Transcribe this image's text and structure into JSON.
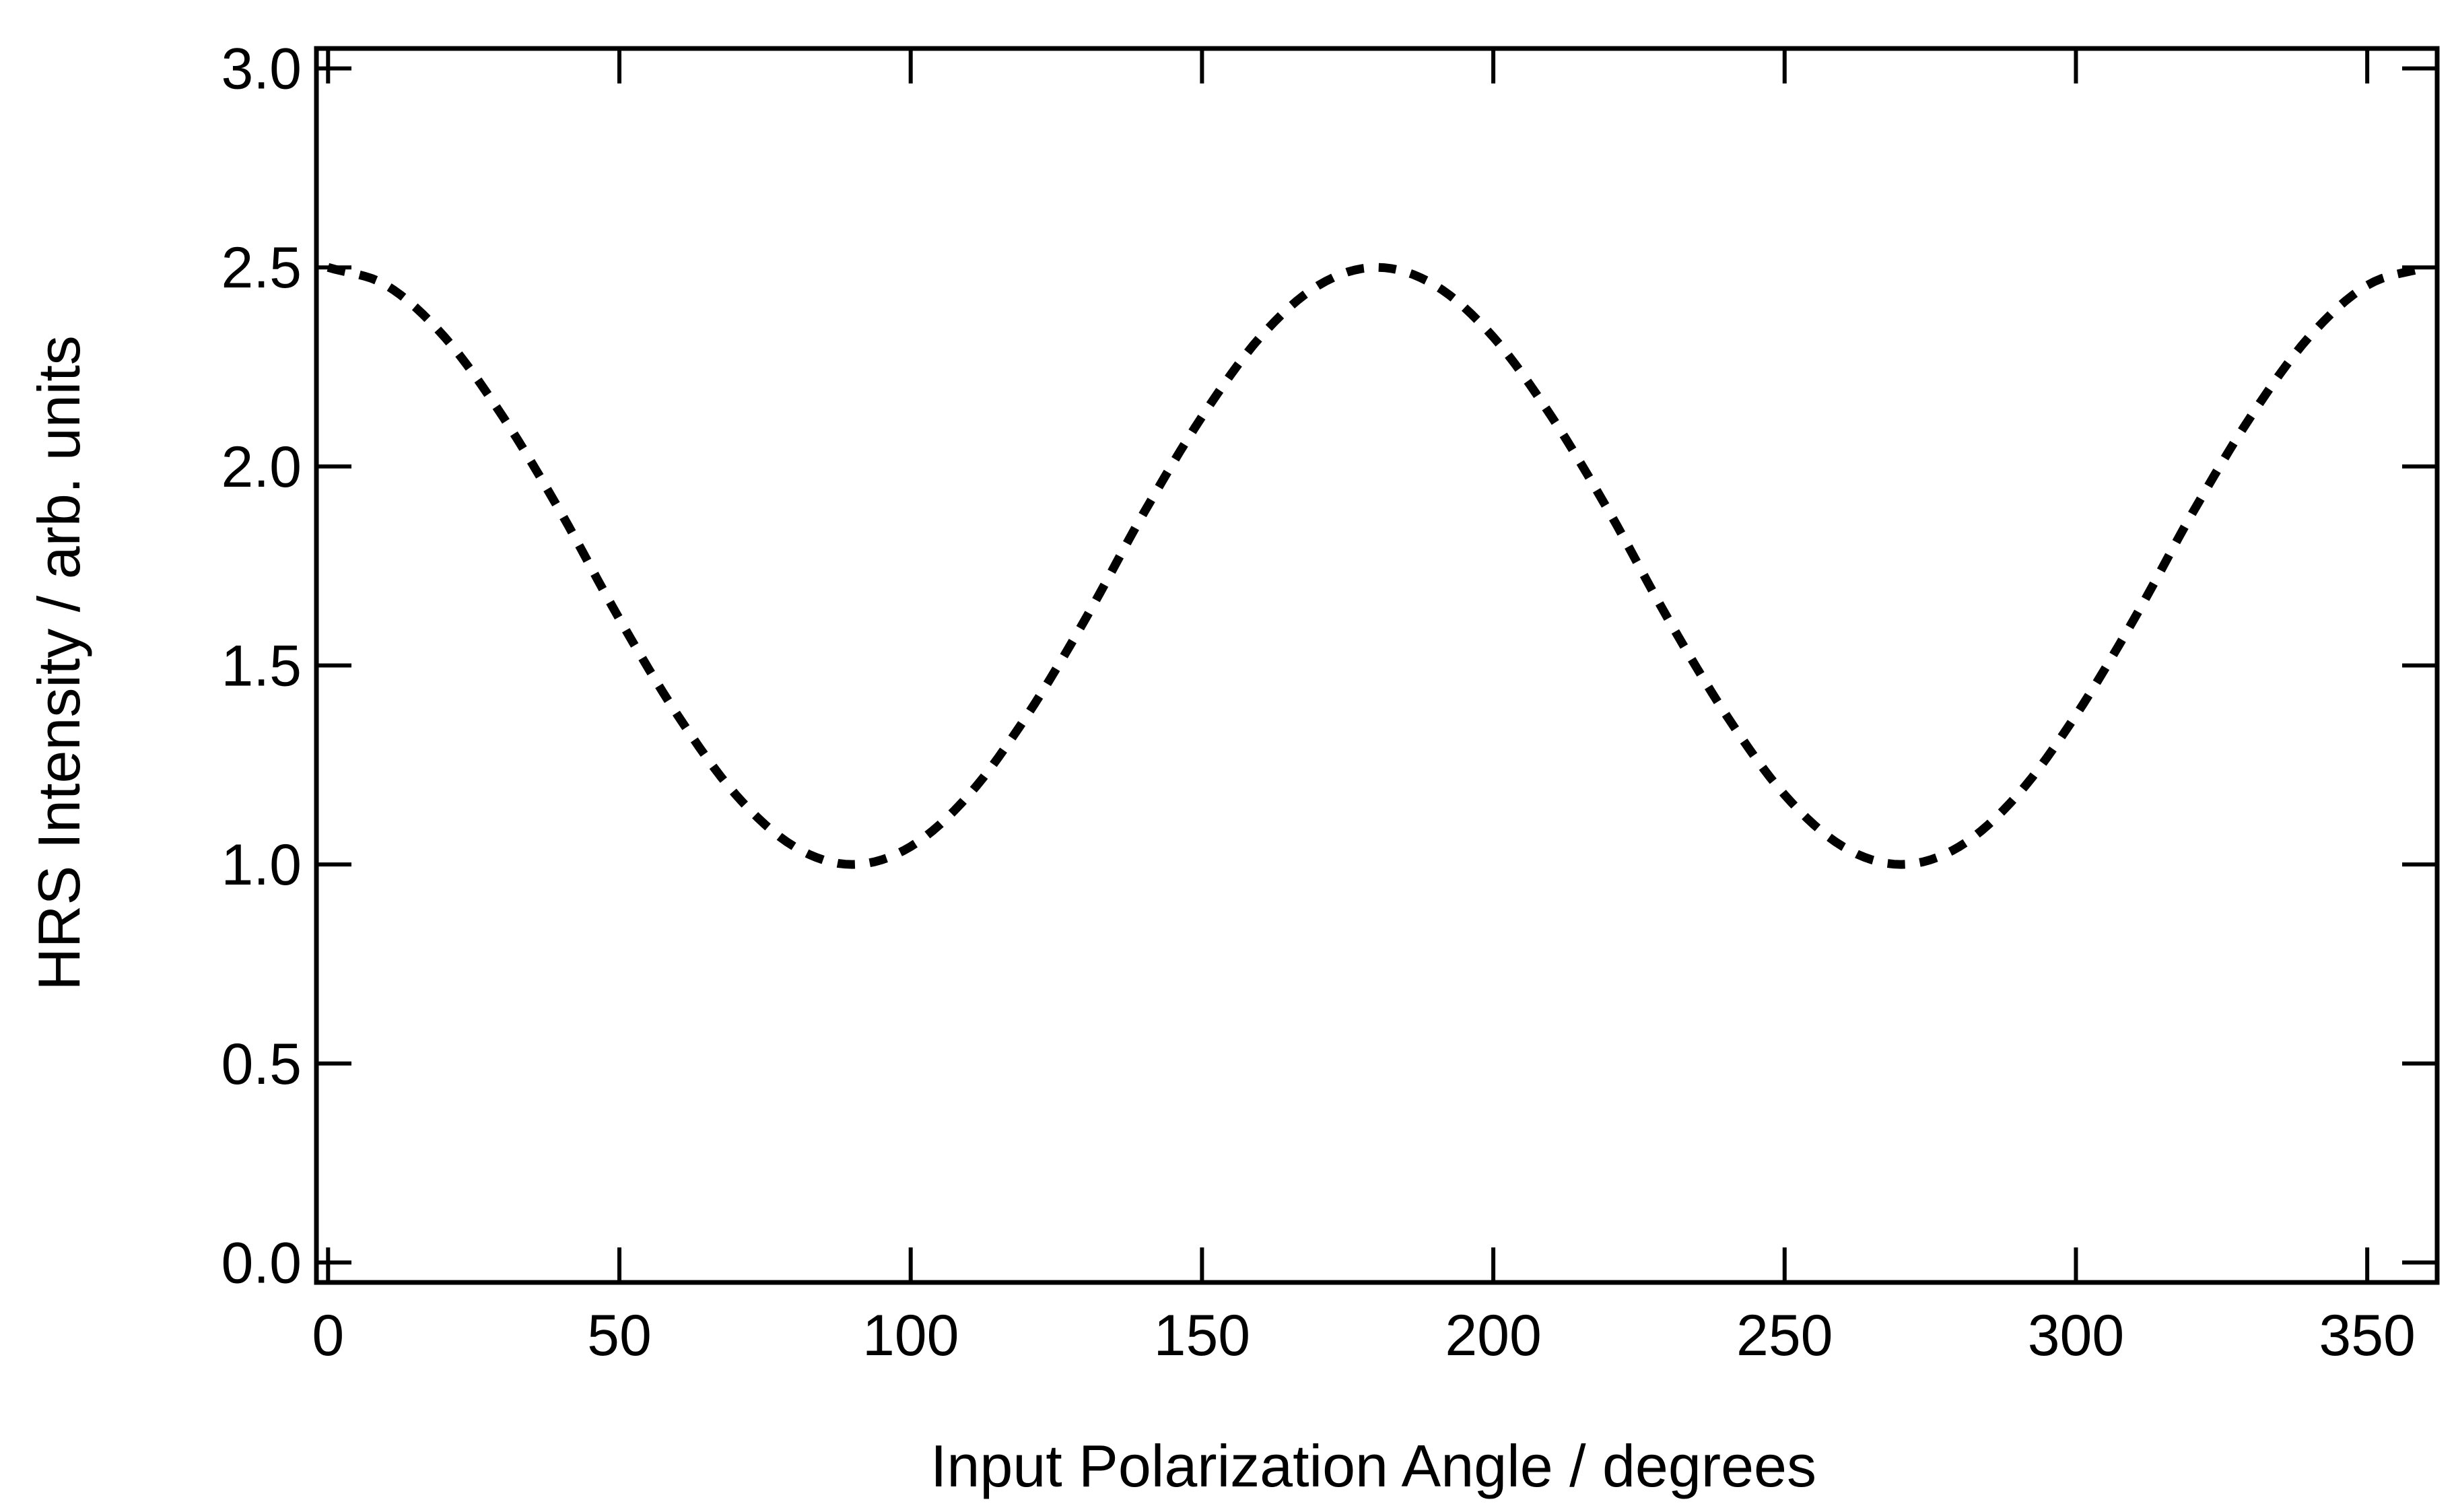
{
  "chart_data": {
    "type": "line",
    "title": "",
    "xlabel": "Input Polarization Angle  / degrees",
    "ylabel": "HRS Intensity  / arb. units",
    "xlim": [
      -2,
      362
    ],
    "ylim": [
      -0.05,
      3.05
    ],
    "x_ticks": [
      0,
      50,
      100,
      150,
      200,
      250,
      300,
      350
    ],
    "x_tick_labels": [
      "0",
      "50",
      "100",
      "150",
      "200",
      "250",
      "300",
      "350"
    ],
    "y_ticks": [
      0.0,
      0.5,
      1.0,
      1.5,
      2.0,
      2.5,
      3.0
    ],
    "y_tick_labels": [
      "0.0",
      "0.5",
      "1.0",
      "1.5",
      "2.0",
      "2.5",
      "3.0"
    ],
    "grid": false,
    "line_style": "dashed",
    "line_color": "#000000",
    "series": [
      {
        "x": [
          0,
          10,
          20,
          30,
          40,
          50,
          60,
          70,
          80,
          90,
          100,
          110,
          120,
          130,
          140,
          150,
          160,
          170,
          180,
          190,
          200,
          210,
          220,
          230,
          240,
          250,
          260,
          270,
          280,
          290,
          300,
          310,
          320,
          330,
          340,
          350,
          360
        ],
        "values": [
          2.5,
          2.455,
          2.325,
          2.125,
          1.883,
          1.617,
          1.375,
          1.175,
          1.045,
          1.0,
          1.045,
          1.175,
          1.375,
          1.617,
          1.883,
          2.125,
          2.325,
          2.455,
          2.5,
          2.455,
          2.325,
          2.125,
          1.883,
          1.617,
          1.375,
          1.175,
          1.045,
          1.0,
          1.045,
          1.175,
          1.375,
          1.617,
          1.883,
          2.125,
          2.325,
          2.455,
          2.5
        ]
      }
    ]
  }
}
